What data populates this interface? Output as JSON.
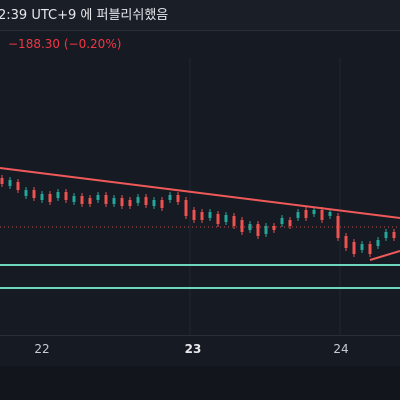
{
  "header": {
    "published": "2:39 UTC+9 에 퍼블리쉬했음"
  },
  "change": "−188.30 (−0.20%)",
  "x_axis_labels": [
    "22",
    "23",
    "24"
  ]
}
